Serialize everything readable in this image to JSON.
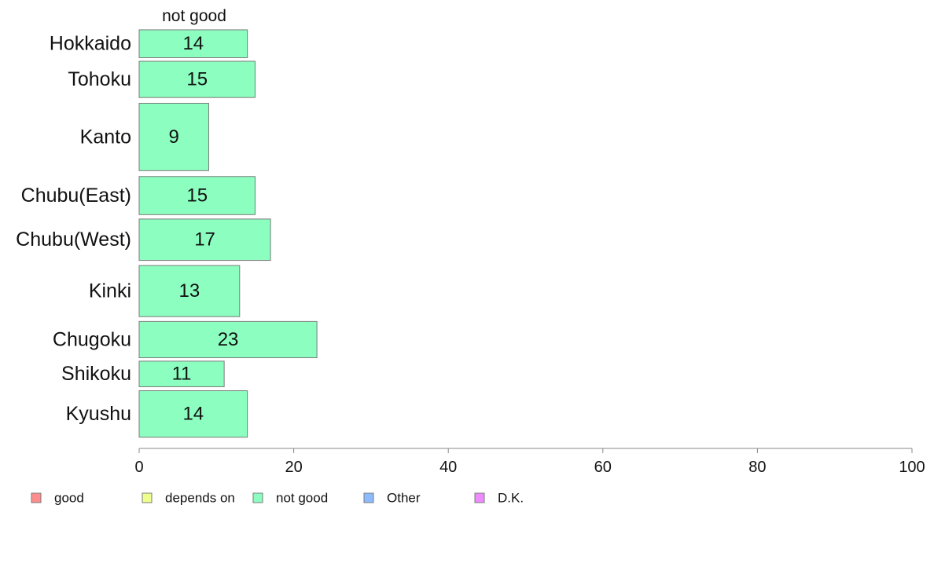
{
  "chart_data": {
    "type": "bar",
    "orientation": "horizontal",
    "stacked": true,
    "header_label": "not good",
    "categories": [
      "Hokkaido",
      "Tohoku",
      "Kanto",
      "Chubu(East)",
      "Chubu(West)",
      "Kinki",
      "Chugoku",
      "Shikoku",
      "Kyushu"
    ],
    "category_weights": [
      0.6,
      0.78,
      1.45,
      0.82,
      0.89,
      1.1,
      0.78,
      0.55,
      1.0
    ],
    "series": [
      {
        "name": "not good",
        "color": "#8cffc0",
        "values": [
          14,
          15,
          9,
          15,
          17,
          13,
          23,
          11,
          14
        ]
      }
    ],
    "xlim": [
      0,
      100
    ],
    "xticks": [
      0,
      20,
      40,
      60,
      80,
      100
    ],
    "grid": false,
    "legend": {
      "position": "bottom-left",
      "entries": [
        {
          "label": "good",
          "color": "#ff8c8c"
        },
        {
          "label": "depends on",
          "color": "#eeff8c"
        },
        {
          "label": "not good",
          "color": "#8cffc0"
        },
        {
          "label": "Other",
          "color": "#8cbcff"
        },
        {
          "label": "D.K.",
          "color": "#ee8cff"
        }
      ]
    }
  }
}
